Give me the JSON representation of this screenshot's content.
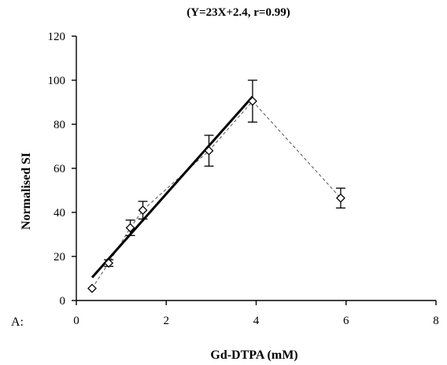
{
  "chart_data": {
    "type": "scatter",
    "title": "(Y=23X+2.4, r=0.99)",
    "xlabel": "Gd-DTPA (mM)",
    "ylabel": "Normalised SI",
    "panel_label": "A:",
    "xlim": [
      0,
      8
    ],
    "ylim": [
      0,
      120
    ],
    "x_ticks": [
      "0",
      "2",
      "4",
      "6",
      "8"
    ],
    "y_ticks": [
      "0",
      "20",
      "40",
      "60",
      "80",
      "100",
      "120"
    ],
    "grid": false,
    "legend": "none",
    "series": [
      {
        "points": [
          {
            "x": 0.35,
            "y": 5.5,
            "err": 0
          },
          {
            "x": 0.72,
            "y": 17,
            "err": 1.5
          },
          {
            "x": 1.2,
            "y": 33,
            "err": 3.5
          },
          {
            "x": 1.48,
            "y": 41,
            "err": 4
          },
          {
            "x": 2.95,
            "y": 68,
            "err": 7
          },
          {
            "x": 3.92,
            "y": 90.5,
            "err": 9.5
          },
          {
            "x": 5.88,
            "y": 46.5,
            "err": 4.5
          }
        ]
      }
    ],
    "fit_line": {
      "slope": 23,
      "intercept": 2.4,
      "x_range": [
        0.35,
        3.92
      ]
    }
  }
}
